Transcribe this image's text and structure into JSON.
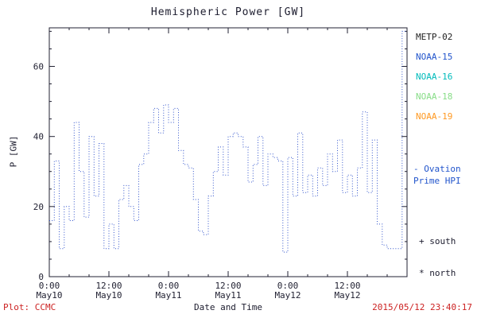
{
  "title": "Hemispheric Power [GW]",
  "legend": {
    "satellites": [
      {
        "label": "METP-02",
        "color": "#222222"
      },
      {
        "label": "NOAA-15",
        "color": "#2255cc"
      },
      {
        "label": "NOAA-16",
        "color": "#00bbbb"
      },
      {
        "label": "NOAA-18",
        "color": "#88dd88"
      },
      {
        "label": "NOAA-19",
        "color": "#ff9922"
      }
    ],
    "model_label_line1": "- Ovation",
    "model_label_line2": "Prime HPI",
    "model_color": "#2255cc",
    "south_marker": "+ south",
    "north_marker": "* north"
  },
  "footer": {
    "credit": "Plot: CCMC",
    "timestamp": "2015/05/12 23:40:17",
    "accent_color": "#cc2222"
  },
  "chart_data": {
    "type": "line",
    "subtype": "dotted-step",
    "title": "Hemispheric Power [GW]",
    "xlabel": "Date and Time",
    "ylabel": "P [GW]",
    "xlim_hours": [
      0,
      72
    ],
    "ylim": [
      0,
      71
    ],
    "grid": false,
    "legend_position": "right-outside",
    "x_ticks": [
      {
        "hour": 0,
        "time": "0:00",
        "date": "May10"
      },
      {
        "hour": 12,
        "time": "12:00",
        "date": "May10"
      },
      {
        "hour": 24,
        "time": "0:00",
        "date": "May11"
      },
      {
        "hour": 36,
        "time": "12:00",
        "date": "May11"
      },
      {
        "hour": 48,
        "time": "0:00",
        "date": "May12"
      },
      {
        "hour": 60,
        "time": "12:00",
        "date": "May12"
      }
    ],
    "x_minor_tick_hours": 4,
    "y_ticks": [
      0,
      20,
      40,
      60
    ],
    "y_minor_tick": 5,
    "series": [
      {
        "name": "Ovation Prime HPI",
        "color": "#3355cc",
        "line_style": "dotted-step",
        "start_hour": 0,
        "sample_interval_hours": 1,
        "values_gw": [
          16,
          33,
          8,
          20,
          16,
          44,
          30,
          17,
          40,
          23,
          38,
          8,
          15,
          8,
          22,
          26,
          20,
          16,
          32,
          35,
          44,
          48,
          41,
          49,
          44,
          48,
          36,
          32,
          31,
          22,
          13,
          12,
          23,
          30,
          37,
          29,
          40,
          41,
          40,
          37,
          27,
          32,
          40,
          26,
          35,
          34,
          33,
          7,
          34,
          23,
          41,
          24,
          29,
          23,
          31,
          26,
          35,
          30,
          39,
          24,
          29,
          23,
          31,
          47,
          24,
          39,
          15,
          9,
          8,
          8,
          8,
          70
        ]
      }
    ]
  }
}
